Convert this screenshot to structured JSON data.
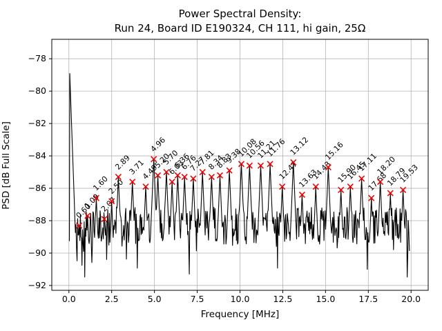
{
  "title": {
    "line1": "Power Spectral Density:",
    "line2": "Run 24, Board ID E190324, CH 111, hi gain, 25Ω"
  },
  "chart_data": {
    "type": "line",
    "title": "Power Spectral Density: Run 24, Board ID E190324, CH 111, hi gain, 25Ω",
    "xlabel": "Frequency [MHz]",
    "ylabel": "PSD [dB Full Scale]",
    "xlim": [
      -1,
      21
    ],
    "ylim": [
      -92.3,
      -76.8
    ],
    "grid": true,
    "legend": "none",
    "line_color": "#000000",
    "marker_symbol": "x",
    "marker_color": "#ee0000",
    "xticks": {
      "values": [
        0,
        2.5,
        5,
        7.5,
        10,
        12.5,
        15,
        17.5,
        20
      ],
      "labels": [
        "0.0",
        "2.5",
        "5.0",
        "7.5",
        "10.0",
        "12.5",
        "15.0",
        "17.5",
        "20.0"
      ]
    },
    "yticks": {
      "values": [
        -78,
        -80,
        -82,
        -84,
        -86,
        -88,
        -90,
        -92
      ],
      "labels": [
        "−78",
        "−80",
        "−82",
        "−84",
        "−86",
        "−88",
        "−90",
        "−92"
      ]
    },
    "dc_spike": {
      "freq": 0.05,
      "psd": -78.9
    },
    "noise_floor_db": {
      "typical": -88.3,
      "min": -91.5,
      "max": -86.0
    },
    "annotated_peaks": [
      {
        "f": 0.6,
        "psd": -88.3,
        "label": "0.60"
      },
      {
        "f": 1.09,
        "psd": -87.7,
        "label": "1.09"
      },
      {
        "f": 1.6,
        "psd": -86.6,
        "label": "1.60"
      },
      {
        "f": 2.07,
        "psd": -87.9,
        "label": "2.07"
      },
      {
        "f": 2.5,
        "psd": -86.8,
        "label": "2.50"
      },
      {
        "f": 2.89,
        "psd": -85.3,
        "label": "2.89"
      },
      {
        "f": 3.71,
        "psd": -85.6,
        "label": "3.71"
      },
      {
        "f": 4.49,
        "psd": -85.9,
        "label": "4.49"
      },
      {
        "f": 4.96,
        "psd": -84.2,
        "label": "4.96"
      },
      {
        "f": 5.2,
        "psd": -85.2,
        "label": "5.20"
      },
      {
        "f": 5.7,
        "psd": -85.0,
        "label": "5.70"
      },
      {
        "f": 6.03,
        "psd": -85.6,
        "label": "6.03"
      },
      {
        "f": 6.36,
        "psd": -85.2,
        "label": "6.36"
      },
      {
        "f": 6.76,
        "psd": -85.3,
        "label": "6.76"
      },
      {
        "f": 7.27,
        "psd": -85.4,
        "label": "7.27"
      },
      {
        "f": 7.81,
        "psd": -85.0,
        "label": "7.81"
      },
      {
        "f": 8.34,
        "psd": -85.3,
        "label": "8.34"
      },
      {
        "f": 8.83,
        "psd": -85.2,
        "label": "8.83"
      },
      {
        "f": 9.38,
        "psd": -84.9,
        "label": "9.38"
      },
      {
        "f": 10.08,
        "psd": -84.5,
        "label": "10.08"
      },
      {
        "f": 10.56,
        "psd": -84.6,
        "label": "10.56"
      },
      {
        "f": 11.21,
        "psd": -84.6,
        "label": "11.21"
      },
      {
        "f": 11.76,
        "psd": -84.5,
        "label": "11.76"
      },
      {
        "f": 12.47,
        "psd": -85.9,
        "label": "12.47"
      },
      {
        "f": 13.12,
        "psd": -84.4,
        "label": "13.12"
      },
      {
        "f": 13.63,
        "psd": -86.4,
        "label": "13.63"
      },
      {
        "f": 14.43,
        "psd": -85.9,
        "label": "14.43"
      },
      {
        "f": 15.16,
        "psd": -84.7,
        "label": "15.16"
      },
      {
        "f": 15.9,
        "psd": -86.1,
        "label": "15.90"
      },
      {
        "f": 16.45,
        "psd": -85.9,
        "label": "16.45"
      },
      {
        "f": 17.11,
        "psd": -85.4,
        "label": "17.11"
      },
      {
        "f": 17.68,
        "psd": -86.6,
        "label": "17.68"
      },
      {
        "f": 18.2,
        "psd": -85.6,
        "label": "18.20"
      },
      {
        "f": 18.79,
        "psd": -86.3,
        "label": "18.79"
      },
      {
        "f": 19.53,
        "psd": -86.1,
        "label": "19.53"
      }
    ]
  }
}
